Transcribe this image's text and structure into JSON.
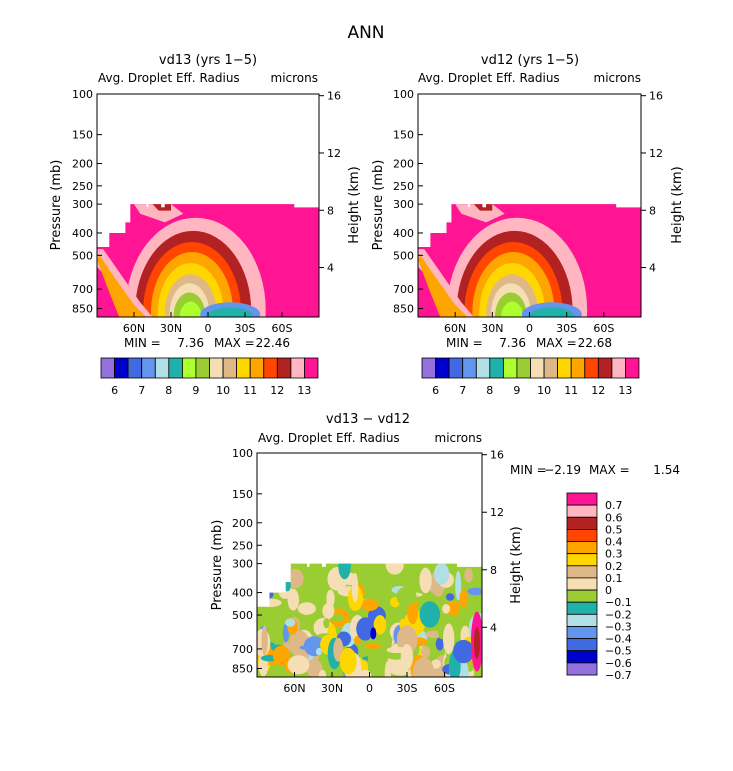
{
  "figure_title": "ANN",
  "colors": {
    "scale13": [
      "#9370db",
      "#0000cd",
      "#4169e1",
      "#6495ed",
      "#b0e0e6",
      "#20b2aa",
      "#adff2f",
      "#9acd32",
      "#f5deb3",
      "#deb887",
      "#ffd700",
      "#ffa500",
      "#ff4500",
      "#b22222",
      "#ffb6c1",
      "#ff1493"
    ],
    "diff": [
      "#9370db",
      "#0000cd",
      "#4169e1",
      "#6495ed",
      "#b0e0e6",
      "#20b2aa",
      "#9acd32",
      "#f5deb3",
      "#deb887",
      "#ffd700",
      "#ffa500",
      "#ff4500",
      "#b22222",
      "#ffb6c1",
      "#ff1493"
    ]
  },
  "chart_data": [
    {
      "id": "vd13",
      "type": "heatmap",
      "title": "vd13 (yrs 1−5)",
      "subtitle": "Avg. Droplet Eff. Radius",
      "units": "microns",
      "ylabel": "Pressure (mb)",
      "ylabel_right": "Height (km)",
      "x_ticks": [
        "60N",
        "30N",
        "0",
        "30S",
        "60S"
      ],
      "x_tick_values": [
        60,
        30,
        0,
        -30,
        -60
      ],
      "x_range": [
        90,
        -90
      ],
      "y_ticks": [
        "100",
        "150",
        "200",
        "250",
        "300",
        "400",
        "500",
        "700",
        "850"
      ],
      "y_tick_values": [
        100,
        150,
        200,
        250,
        300,
        400,
        500,
        700,
        850
      ],
      "y_range": [
        100,
        925
      ],
      "right_ticks": [
        "16",
        "12",
        "8",
        "4"
      ],
      "right_tick_values": [
        16,
        12,
        8,
        4
      ],
      "stats": {
        "min_label": "MIN =",
        "min": "7.36",
        "max_label": "MAX =",
        "max": "22.46"
      },
      "colorbar_labels": [
        "6",
        "7",
        "8",
        "9",
        "10",
        "11",
        "12",
        "13"
      ]
    },
    {
      "id": "vd12",
      "type": "heatmap",
      "title": "vd12 (yrs 1−5)",
      "subtitle": "Avg. Droplet Eff. Radius",
      "units": "microns",
      "ylabel": "Pressure (mb)",
      "ylabel_right": "Height (km)",
      "x_ticks": [
        "60N",
        "30N",
        "0",
        "30S",
        "60S"
      ],
      "x_tick_values": [
        60,
        30,
        0,
        -30,
        -60
      ],
      "x_range": [
        90,
        -90
      ],
      "y_ticks": [
        "100",
        "150",
        "200",
        "250",
        "300",
        "400",
        "500",
        "700",
        "850"
      ],
      "y_tick_values": [
        100,
        150,
        200,
        250,
        300,
        400,
        500,
        700,
        850
      ],
      "y_range": [
        100,
        925
      ],
      "right_ticks": [
        "16",
        "12",
        "8",
        "4"
      ],
      "right_tick_values": [
        16,
        12,
        8,
        4
      ],
      "stats": {
        "min_label": "MIN =",
        "min": "7.36",
        "max_label": "MAX =",
        "max": "22.68"
      },
      "colorbar_labels": [
        "6",
        "7",
        "8",
        "9",
        "10",
        "11",
        "12",
        "13"
      ]
    },
    {
      "id": "diff",
      "type": "heatmap",
      "title": "vd13 − vd12",
      "subtitle": "Avg. Droplet Eff. Radius",
      "units": "microns",
      "ylabel": "Pressure (mb)",
      "ylabel_right": "Height (km)",
      "x_ticks": [
        "60N",
        "30N",
        "0",
        "30S",
        "60S"
      ],
      "x_tick_values": [
        60,
        30,
        0,
        -30,
        -60
      ],
      "x_range": [
        90,
        -90
      ],
      "y_ticks": [
        "100",
        "150",
        "200",
        "250",
        "300",
        "400",
        "500",
        "700",
        "850"
      ],
      "y_tick_values": [
        100,
        150,
        200,
        250,
        300,
        400,
        500,
        700,
        850
      ],
      "y_range": [
        100,
        925
      ],
      "right_ticks": [
        "16",
        "12",
        "8",
        "4"
      ],
      "right_tick_values": [
        16,
        12,
        8,
        4
      ],
      "stats": {
        "min_label": "MIN =",
        "min": "−2.19",
        "max_label": "MAX =",
        "max": "1.54"
      },
      "colorbar_labels": [
        "0.7",
        "0.6",
        "0.5",
        "0.4",
        "0.3",
        "0.2",
        "0.1",
        "0",
        "−0.1",
        "−0.2",
        "−0.3",
        "−0.4",
        "−0.5",
        "−0.6",
        "−0.7"
      ]
    }
  ]
}
